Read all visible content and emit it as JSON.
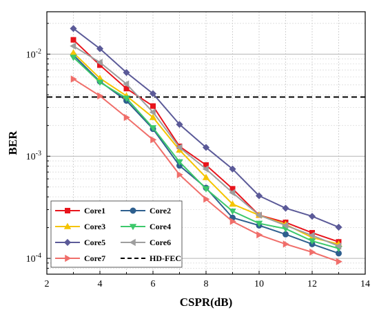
{
  "chart_data": {
    "type": "line",
    "title": "",
    "xlabel": "CSPR(dB)",
    "ylabel": "BER",
    "xlim": [
      2,
      14
    ],
    "ylim": [
      7e-05,
      0.026
    ],
    "yscale": "log",
    "xticks": [
      "2",
      "4",
      "6",
      "8",
      "10",
      "12",
      "14"
    ],
    "yticks": [
      {
        "value": 0.01,
        "base": "10",
        "exp": "-2"
      },
      {
        "value": 0.001,
        "base": "10",
        "exp": "-3"
      },
      {
        "value": 0.0001,
        "base": "10",
        "exp": "-4"
      }
    ],
    "grid": true,
    "legend_position": "bottom-left",
    "x": [
      3,
      4,
      5,
      6,
      7,
      8,
      9,
      10,
      11,
      12,
      13
    ],
    "series": [
      {
        "name": "Core1",
        "color": "#e8141c",
        "marker": "square",
        "values": [
          0.0138,
          0.0078,
          0.0046,
          0.0031,
          0.00125,
          0.00082,
          0.00048,
          0.000265,
          0.000225,
          0.000178,
          0.000145
        ]
      },
      {
        "name": "Core2",
        "color": "#2e5f8e",
        "marker": "circle",
        "values": [
          0.0098,
          0.0054,
          0.0035,
          0.00185,
          0.00081,
          0.00049,
          0.00025,
          0.00021,
          0.000172,
          0.000138,
          0.000112
        ]
      },
      {
        "name": "Core3",
        "color": "#f5c400",
        "marker": "triangle-up",
        "values": [
          0.0103,
          0.0058,
          0.0039,
          0.0024,
          0.00115,
          0.00062,
          0.00034,
          0.000265,
          0.000215,
          0.00016,
          0.000138
        ]
      },
      {
        "name": "Core4",
        "color": "#3dc86b",
        "marker": "triangle-down",
        "values": [
          0.0093,
          0.0053,
          0.0037,
          0.0019,
          0.00088,
          0.00048,
          0.00029,
          0.00022,
          0.000195,
          0.000148,
          0.000125
        ]
      },
      {
        "name": "Core5",
        "color": "#5b5a98",
        "marker": "diamond",
        "values": [
          0.0178,
          0.0113,
          0.0066,
          0.0041,
          0.00205,
          0.00122,
          0.00075,
          0.00041,
          0.00031,
          0.000258,
          0.000202
        ]
      },
      {
        "name": "Core6",
        "color": "#9e9e9e",
        "marker": "triangle-left",
        "values": [
          0.012,
          0.0083,
          0.0051,
          0.0027,
          0.00122,
          0.00075,
          0.00044,
          0.000265,
          0.00021,
          0.000168,
          0.000132
        ]
      },
      {
        "name": "Core7",
        "color": "#f06e6a",
        "marker": "triangle-right",
        "values": [
          0.0057,
          0.0039,
          0.0024,
          0.00145,
          0.00066,
          0.00038,
          0.00023,
          0.00017,
          0.000138,
          0.000115,
          9.3e-05
        ]
      }
    ],
    "reference_lines": [
      {
        "name": "HD-FEC",
        "value": 0.0038,
        "color": "#000000",
        "style": "dashed"
      }
    ]
  }
}
